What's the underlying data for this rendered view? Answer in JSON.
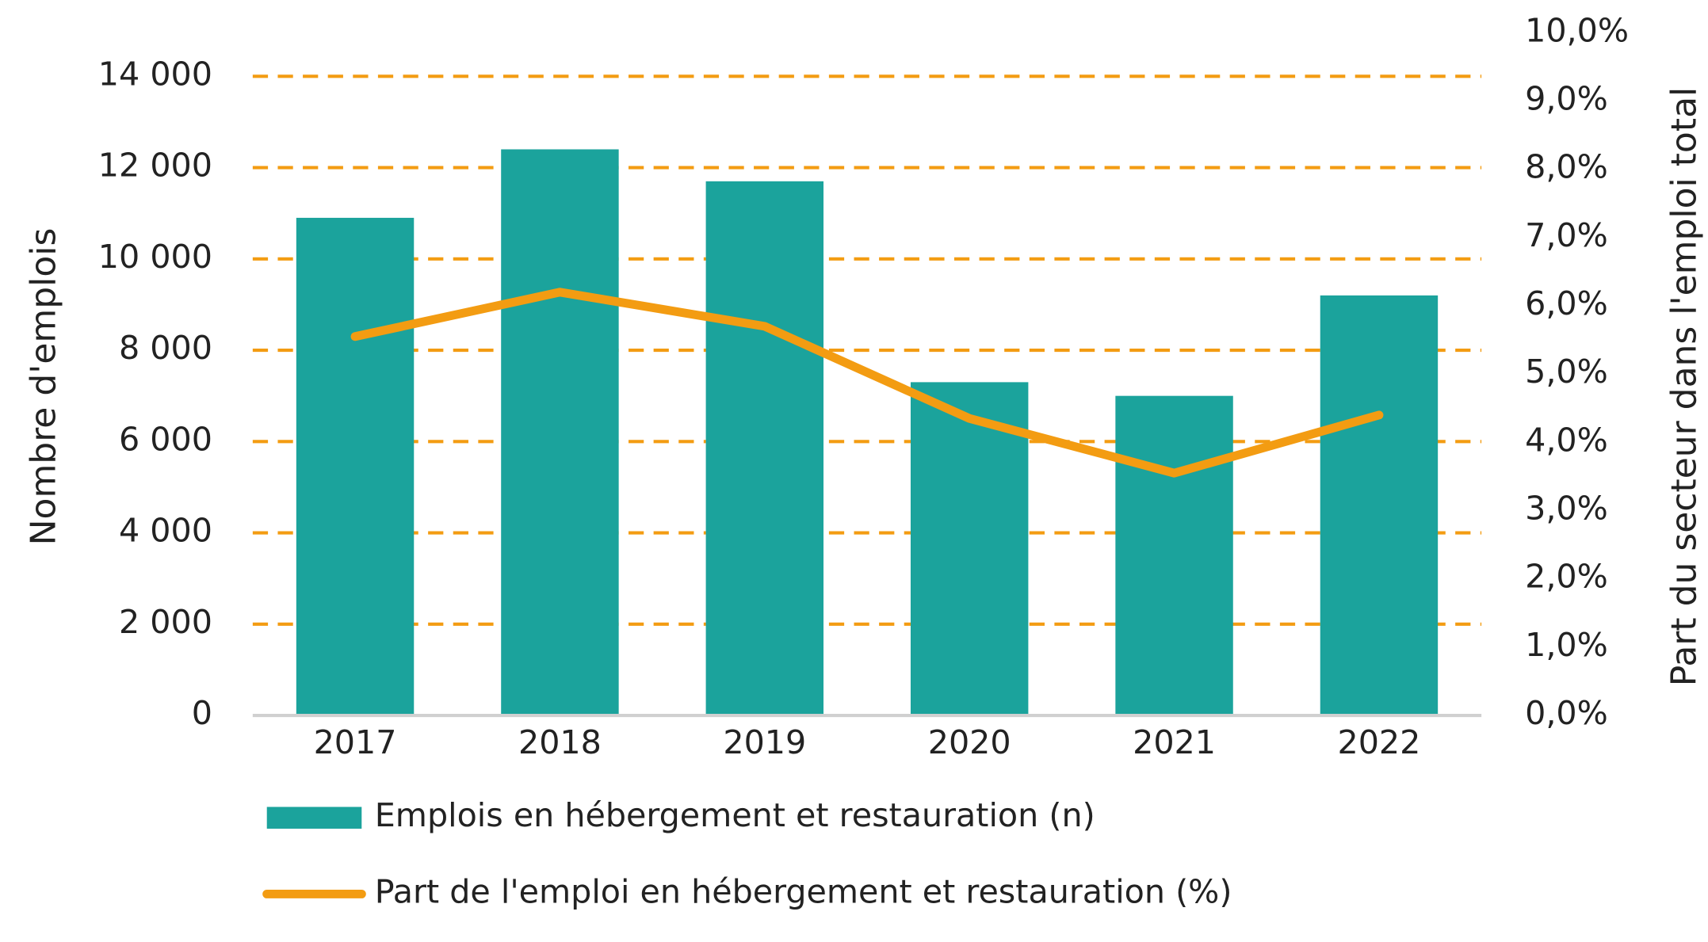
{
  "chart_data": {
    "type": "bar_line",
    "categories": [
      "2017",
      "2018",
      "2019",
      "2020",
      "2021",
      "2022"
    ],
    "series": [
      {
        "name": "Emplois en hébergement et restauration (n)",
        "type": "bar",
        "color": "#1ba39c",
        "values": [
          10900,
          12400,
          11700,
          7300,
          7000,
          9200
        ]
      },
      {
        "name": "Part de l'emploi en hébergement et restauration (%)",
        "type": "line",
        "axis": "y2",
        "color": "#f39c12",
        "values": [
          5.55,
          6.2,
          5.7,
          4.35,
          3.55,
          4.4
        ]
      }
    ],
    "y_label": "Nombre d'emplois",
    "y2_label": "Part du secteur dans l'emploi total",
    "ylim": [
      0,
      14000
    ],
    "yticks": [
      0,
      {
        "value": 2000,
        "label": "2 000"
      },
      {
        "value": 4000,
        "label": "4 000"
      },
      {
        "value": 6000,
        "label": "6 000"
      },
      {
        "value": 8000,
        "label": "8 000"
      },
      {
        "value": 10000,
        "label": "10 000"
      },
      {
        "value": 12000,
        "label": "12 000"
      },
      {
        "value": 14000,
        "label": "14 000"
      }
    ],
    "y2lim": [
      0,
      10
    ],
    "y2ticks": [
      {
        "value": 0,
        "label": "0,0%"
      },
      {
        "value": 1,
        "label": "1,0%"
      },
      {
        "value": 2,
        "label": "2,0%"
      },
      {
        "value": 3,
        "label": "3,0%"
      },
      {
        "value": 4,
        "label": "4,0%"
      },
      {
        "value": 5,
        "label": "5,0%"
      },
      {
        "value": 6,
        "label": "6,0%"
      },
      {
        "value": 7,
        "label": "7,0%"
      },
      {
        "value": 8,
        "label": "8,0%"
      },
      {
        "value": 9,
        "label": "9,0%"
      },
      {
        "value": 10,
        "label": "10,0%"
      }
    ],
    "grid": true,
    "grid_color": "#f39c12",
    "legend": "bottom"
  }
}
